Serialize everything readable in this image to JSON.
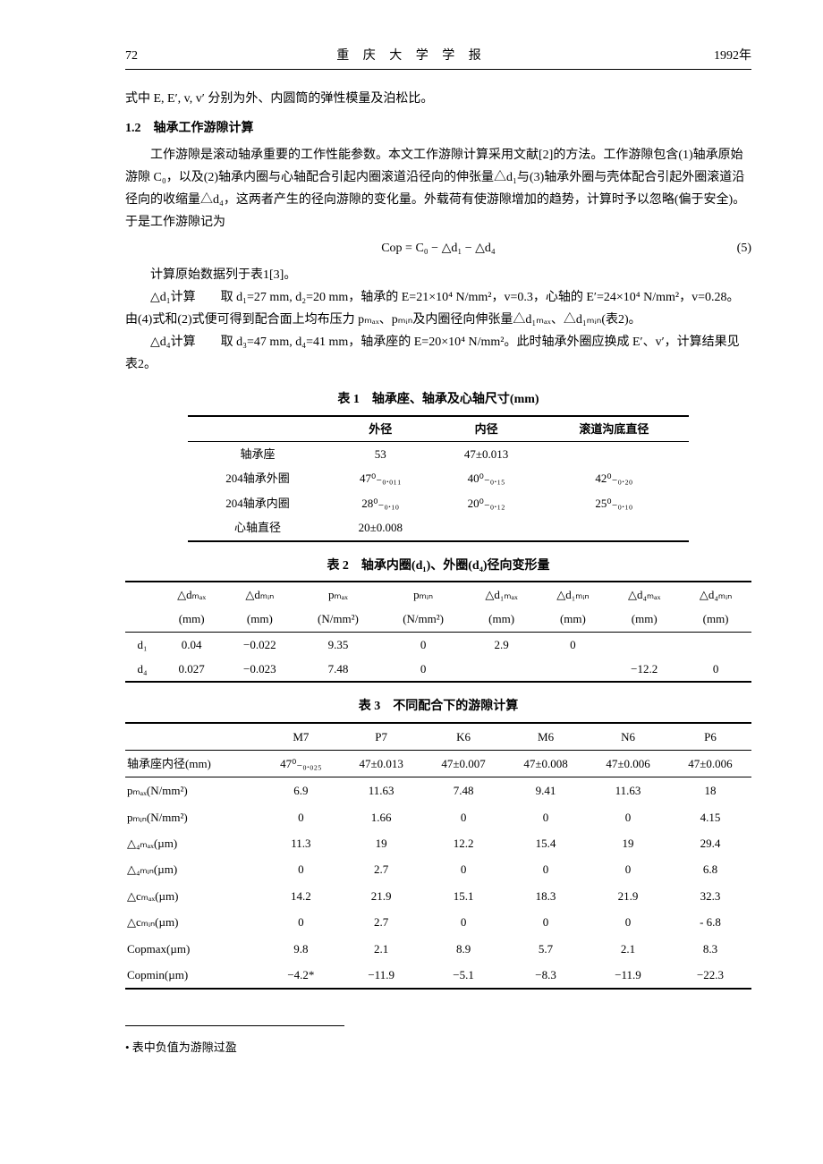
{
  "header": {
    "page_num": "72",
    "center": "重 庆 大 学 学 报",
    "right": "1992年"
  },
  "body": {
    "p0": "式中 E, E′, v, v′ 分别为外、内圆筒的弹性模量及泊松比。",
    "sec_head": "1.2　轴承工作游隙计算",
    "p1": "工作游隙是滚动轴承重要的工作性能参数。本文工作游隙计算采用文献[2]的方法。工作游隙包含(1)轴承原始游隙 C₀，以及(2)轴承内圈与心轴配合引起内圈滚道沿径向的伸张量△d₁与(3)轴承外圈与壳体配合引起外圈滚道沿径向的收缩量△d₄，这两者产生的径向游隙的变化量。外载荷有使游隙增加的趋势，计算时予以忽略(偏于安全)。于是工作游隙记为",
    "eq5": "Cop = C₀ − △d₁ − △d₄",
    "eq5_num": "(5)",
    "p2": "计算原始数据列于表1[3]。",
    "p3": "△d₁计算　　取 d₁=27 mm, d₂=20 mm，轴承的 E=21×10⁴ N/mm²，v=0.3，心轴的 E′=24×10⁴ N/mm²，v=0.28。由(4)式和(2)式便可得到配合面上均布压力 pₘₐₓ、pₘᵢₙ及内圈径向伸张量△d₁ₘₐₓ、△d₁ₘᵢₙ(表2)。",
    "p4": "△d₄计算　　取 d₃=47 mm, d₄=41 mm，轴承座的 E=20×10⁴ N/mm²。此时轴承外圈应换成 E′、v′，计算结果见表2。"
  },
  "table1": {
    "caption": "表 1　轴承座、轴承及心轴尺寸(mm)",
    "headers": [
      "",
      "外径",
      "内径",
      "滚道沟底直径"
    ],
    "rows": [
      [
        "轴承座",
        "53",
        "47±0.013",
        ""
      ],
      [
        "204轴承外圈",
        "47⁰₋₀.₀₁₁",
        "40⁰₋₀.₁₅",
        "42⁰₋₀.₂₀"
      ],
      [
        "204轴承内圈",
        "28⁰₋₀.₁₀",
        "20⁰₋₀.₁₂",
        "25⁰₋₀.₁₀"
      ],
      [
        "心轴直径",
        "20±0.008",
        "",
        ""
      ]
    ]
  },
  "table2": {
    "caption": "表 2　轴承内圈(d₁)、外圈(d₄)径向变形量",
    "head1": [
      "",
      "△dₘₐₓ",
      "△dₘᵢₙ",
      "pₘₐₓ",
      "pₘᵢₙ",
      "△d₁ₘₐₓ",
      "△d₁ₘᵢₙ",
      "△d₄ₘₐₓ",
      "△d₄ₘᵢₙ"
    ],
    "head2": [
      "",
      "(mm)",
      "(mm)",
      "(N/mm²)",
      "(N/mm²)",
      "(mm)",
      "(mm)",
      "(mm)",
      "(mm)"
    ],
    "rows": [
      [
        "d₁",
        "0.04",
        "−0.022",
        "9.35",
        "0",
        "2.9",
        "0",
        "",
        ""
      ],
      [
        "d₄",
        "0.027",
        "−0.023",
        "7.48",
        "0",
        "",
        "",
        "−12.2",
        "0"
      ]
    ]
  },
  "table3": {
    "caption": "表 3　不同配合下的游隙计算",
    "headers": [
      "",
      "M7",
      "P7",
      "K6",
      "M6",
      "N6",
      "P6"
    ],
    "rows": [
      [
        "轴承座内径(mm)",
        "47⁰₋₀.₀₂₅",
        "47±0.013",
        "47±0.007",
        "47±0.008",
        "47±0.006",
        "47±0.006"
      ],
      [
        "pₘₐₓ(N/mm²)",
        "6.9",
        "11.63",
        "7.48",
        "9.41",
        "11.63",
        "18"
      ],
      [
        "pₘᵢₙ(N/mm²)",
        "0",
        "1.66",
        "0",
        "0",
        "0",
        "4.15"
      ],
      [
        "△₄ₘₐₓ(µm)",
        "11.3",
        "19",
        "12.2",
        "15.4",
        "19",
        "29.4"
      ],
      [
        "△₄ₘᵢₙ(µm)",
        "0",
        "2.7",
        "0",
        "0",
        "0",
        "6.8"
      ],
      [
        "△cₘₐₓ(µm)",
        "14.2",
        "21.9",
        "15.1",
        "18.3",
        "21.9",
        "32.3"
      ],
      [
        "△cₘᵢₙ(µm)",
        "0",
        "2.7",
        "0",
        "0",
        "0",
        "- 6.8"
      ],
      [
        "Copmax(µm)",
        "9.8",
        "2.1",
        "8.9",
        "5.7",
        "2.1",
        "8.3"
      ],
      [
        "Copmin(µm)",
        "−4.2*",
        "−11.9",
        "−5.1",
        "−8.3",
        "−11.9",
        "−22.3"
      ]
    ]
  },
  "footnote": "• 表中负值为游隙过盈"
}
